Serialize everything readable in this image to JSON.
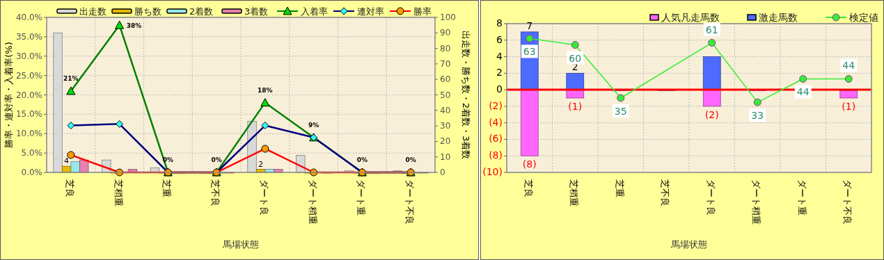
{
  "chart_data": [
    {
      "type": "bar",
      "categories": [
        "芝良",
        "芝稍重",
        "芝重",
        "芝不良",
        "ダート良",
        "ダート稍重",
        "ダート重",
        "ダート不良"
      ],
      "xlabel": "馬場状態",
      "ylabel": "勝率・連対率・入着率(%)",
      "y2label": "出走数・勝ち数・2着数・3着数",
      "ylim": [
        0,
        40
      ],
      "yticks": [
        {
          "value": 0,
          "label": "0.0%"
        },
        {
          "value": 5,
          "label": "5.0%"
        },
        {
          "value": 10,
          "label": "10.0%"
        },
        {
          "value": 15,
          "label": "15.0%"
        },
        {
          "value": 20,
          "label": "20.0%"
        },
        {
          "value": 25,
          "label": "25.0%"
        },
        {
          "value": 30,
          "label": "30.0%"
        },
        {
          "value": 35,
          "label": "35.0%"
        },
        {
          "value": 40,
          "label": "40.0%"
        }
      ],
      "y2lim": [
        0,
        100
      ],
      "y2ticks": [
        0,
        10,
        20,
        30,
        40,
        50,
        60,
        70,
        80,
        90,
        100
      ],
      "grid": true,
      "legend": "top",
      "series": [
        {
          "name": "出走数",
          "axis": "y2",
          "color": "#d9d9d9",
          "values": [
            90,
            8,
            3,
            0,
            33,
            11,
            1,
            1
          ]
        },
        {
          "name": "勝ち数",
          "axis": "y2",
          "color": "#e6b800",
          "values": [
            4,
            0,
            0,
            0,
            2,
            0,
            0,
            0
          ],
          "value_labels": [
            "4",
            null,
            null,
            null,
            "2",
            null,
            null,
            null
          ]
        },
        {
          "name": "2着数",
          "axis": "y2",
          "color": "#99e6e6",
          "values": [
            7,
            null,
            0,
            0,
            2,
            null,
            0,
            0
          ]
        },
        {
          "name": "3着数",
          "axis": "y2",
          "color": "#e680b3",
          "values": [
            8,
            2,
            0,
            0,
            2,
            0,
            0,
            0
          ]
        },
        {
          "name": "入着率",
          "type": "line",
          "axis": "y",
          "color": "#008000",
          "marker": "triangle",
          "values": [
            21,
            38,
            0,
            0,
            18,
            9,
            0,
            0
          ],
          "value_labels": [
            "21%",
            "38%",
            "0%",
            "0%",
            "18%",
            "9%",
            "0%",
            "0%"
          ]
        },
        {
          "name": "連対率",
          "type": "line",
          "axis": "y",
          "color": "#000080",
          "marker": "diamond",
          "values": [
            12.1,
            12.5,
            0,
            0,
            12.1,
            9,
            0,
            0
          ]
        },
        {
          "name": "勝率",
          "type": "line",
          "axis": "y",
          "color": "#ff0000",
          "marker": "circle",
          "values": [
            4.5,
            0,
            0,
            0,
            6.1,
            0,
            0,
            0
          ]
        }
      ]
    },
    {
      "type": "bar",
      "categories": [
        "芝良",
        "芝稍重",
        "芝重",
        "芝不良",
        "ダート良",
        "ダート稍重",
        "ダート重",
        "ダート不良"
      ],
      "xlabel": "馬場状態",
      "ylim": [
        -10,
        8
      ],
      "yticks": [
        {
          "value": -10,
          "label": "(10)"
        },
        {
          "value": -8,
          "label": "(8)"
        },
        {
          "value": -6,
          "label": "(6)"
        },
        {
          "value": -4,
          "label": "(4)"
        },
        {
          "value": -2,
          "label": "(2)"
        },
        0,
        2,
        4,
        6,
        8
      ],
      "y2lim": [
        0,
        70
      ],
      "stacked": true,
      "grid": true,
      "legend": "top",
      "ref_lines": [
        {
          "axis": "y",
          "value": 0,
          "color": "#ff0000"
        }
      ],
      "series": [
        {
          "name": "人気凡走馬数",
          "color": "#ff66ff",
          "values": [
            -8,
            -1,
            0,
            0,
            -2,
            0,
            0,
            -1
          ],
          "value_labels": [
            "(8)",
            "(1)",
            null,
            null,
            "(2)",
            null,
            null,
            "(1)"
          ]
        },
        {
          "name": "激走馬数",
          "color": "#4d6bff",
          "values": [
            7,
            2,
            0,
            0,
            4,
            0,
            0,
            0
          ],
          "value_labels": [
            "7",
            "2",
            null,
            null,
            null,
            null,
            null,
            null
          ]
        },
        {
          "name": "検定値",
          "type": "line",
          "axis": "y2",
          "color": "#33ee33",
          "marker": "circle",
          "values": [
            63,
            60,
            35,
            null,
            61,
            33,
            44,
            44
          ],
          "value_labels": [
            "63",
            "60",
            "35",
            null,
            "61",
            "33",
            "44",
            "44"
          ]
        }
      ]
    }
  ]
}
